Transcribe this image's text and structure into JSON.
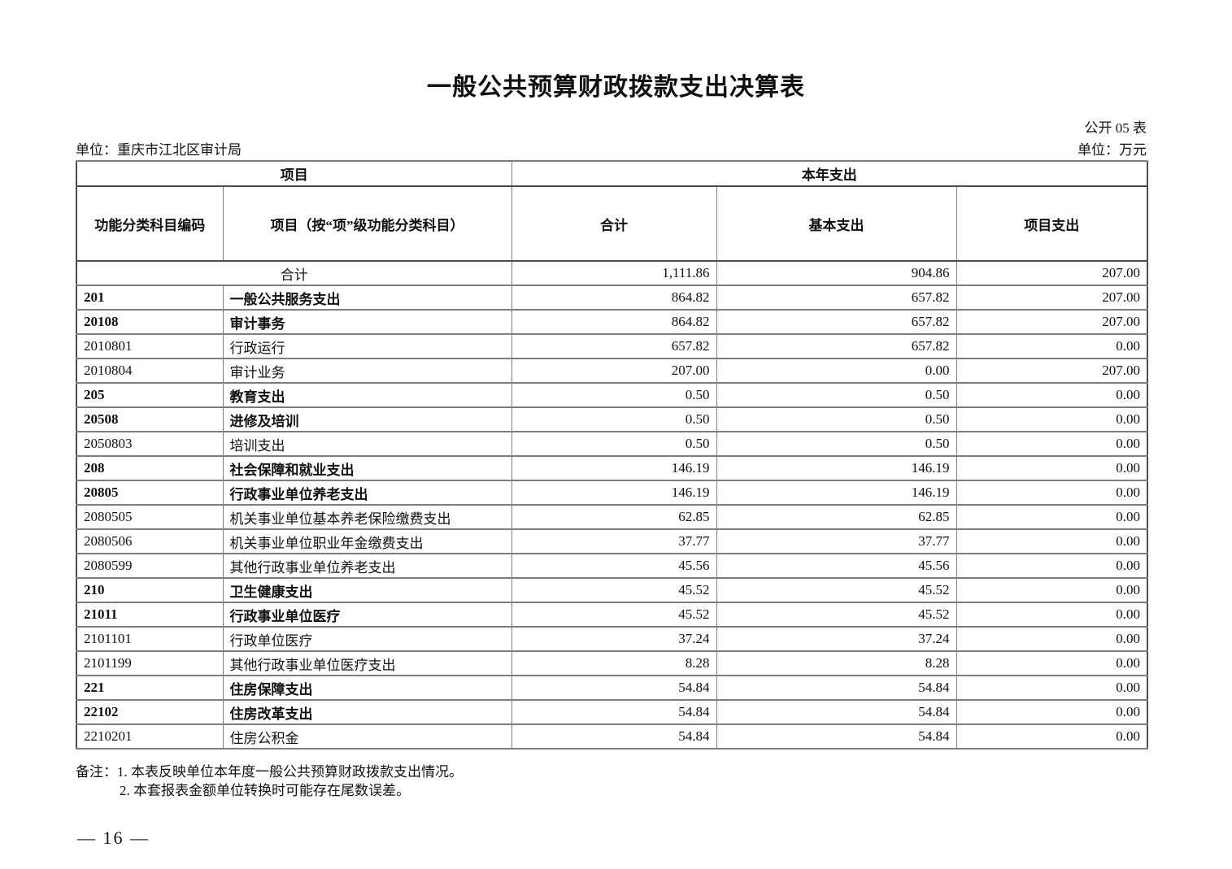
{
  "page": {
    "title": "一般公共预算财政拨款支出决算表",
    "table_code": "公开 05 表",
    "unit_left": "单位：重庆市江北区审计局",
    "unit_right": "单位：万元",
    "page_number": "— 16 —"
  },
  "table": {
    "header": {
      "group_left": "项目",
      "group_right": "本年支出",
      "col_code": "功能分类科目编码",
      "col_item": "项目（按“项”级功能分类科目）",
      "col_total": "合计",
      "col_basic": "基本支出",
      "col_project": "项目支出"
    },
    "total_row": {
      "label": "合计",
      "total": "1,111.86",
      "basic": "904.86",
      "project": "207.00"
    },
    "rows": [
      {
        "code": "201",
        "name": "一般公共服务支出",
        "bold": true,
        "total": "864.82",
        "basic": "657.82",
        "project": "207.00"
      },
      {
        "code": "20108",
        "name": "审计事务",
        "bold": true,
        "total": "864.82",
        "basic": "657.82",
        "project": "207.00"
      },
      {
        "code": "2010801",
        "name": "行政运行",
        "bold": false,
        "total": "657.82",
        "basic": "657.82",
        "project": "0.00"
      },
      {
        "code": "2010804",
        "name": "审计业务",
        "bold": false,
        "total": "207.00",
        "basic": "0.00",
        "project": "207.00"
      },
      {
        "code": "205",
        "name": "教育支出",
        "bold": true,
        "total": "0.50",
        "basic": "0.50",
        "project": "0.00"
      },
      {
        "code": "20508",
        "name": "进修及培训",
        "bold": true,
        "total": "0.50",
        "basic": "0.50",
        "project": "0.00"
      },
      {
        "code": "2050803",
        "name": "培训支出",
        "bold": false,
        "total": "0.50",
        "basic": "0.50",
        "project": "0.00"
      },
      {
        "code": "208",
        "name": "社会保障和就业支出",
        "bold": true,
        "total": "146.19",
        "basic": "146.19",
        "project": "0.00"
      },
      {
        "code": "20805",
        "name": "行政事业单位养老支出",
        "bold": true,
        "total": "146.19",
        "basic": "146.19",
        "project": "0.00"
      },
      {
        "code": "2080505",
        "name": "机关事业单位基本养老保险缴费支出",
        "bold": false,
        "total": "62.85",
        "basic": "62.85",
        "project": "0.00"
      },
      {
        "code": "2080506",
        "name": "机关事业单位职业年金缴费支出",
        "bold": false,
        "total": "37.77",
        "basic": "37.77",
        "project": "0.00"
      },
      {
        "code": "2080599",
        "name": "其他行政事业单位养老支出",
        "bold": false,
        "total": "45.56",
        "basic": "45.56",
        "project": "0.00"
      },
      {
        "code": "210",
        "name": "卫生健康支出",
        "bold": true,
        "total": "45.52",
        "basic": "45.52",
        "project": "0.00"
      },
      {
        "code": "21011",
        "name": "行政事业单位医疗",
        "bold": true,
        "total": "45.52",
        "basic": "45.52",
        "project": "0.00"
      },
      {
        "code": "2101101",
        "name": "行政单位医疗",
        "bold": false,
        "total": "37.24",
        "basic": "37.24",
        "project": "0.00"
      },
      {
        "code": "2101199",
        "name": "其他行政事业单位医疗支出",
        "bold": false,
        "total": "8.28",
        "basic": "8.28",
        "project": "0.00"
      },
      {
        "code": "221",
        "name": "住房保障支出",
        "bold": true,
        "total": "54.84",
        "basic": "54.84",
        "project": "0.00"
      },
      {
        "code": "22102",
        "name": "住房改革支出",
        "bold": true,
        "total": "54.84",
        "basic": "54.84",
        "project": "0.00"
      },
      {
        "code": "2210201",
        "name": "住房公积金",
        "bold": false,
        "total": "54.84",
        "basic": "54.84",
        "project": "0.00"
      }
    ]
  },
  "notes": {
    "line1": "备注：1. 本表反映单位本年度一般公共预算财政拨款支出情况。",
    "line2": "2. 本套报表金额单位转换时可能存在尾数误差。"
  }
}
